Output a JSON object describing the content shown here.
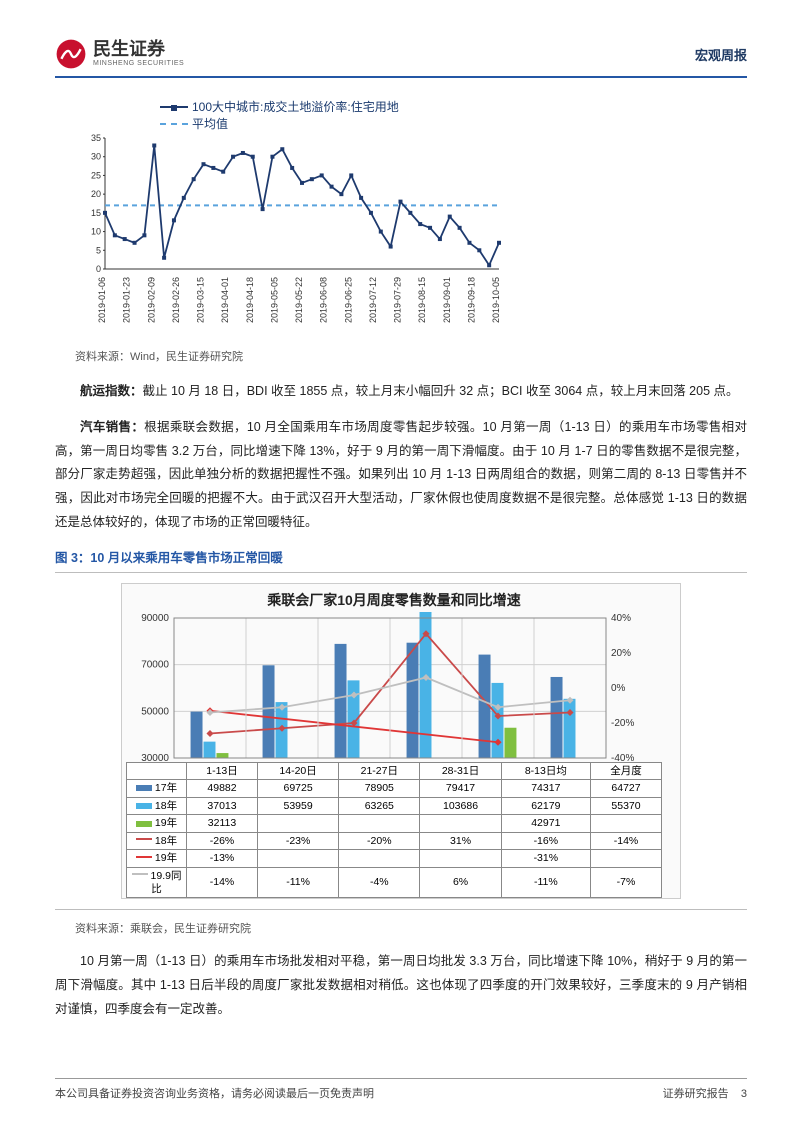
{
  "header": {
    "company_cn": "民生证券",
    "company_en": "MINSHENG SECURITIES",
    "doc_type": "宏观周报"
  },
  "chart1": {
    "type": "line",
    "legend_series": "100大中城市:成交土地溢价率:住宅用地",
    "legend_avg": "平均值",
    "series_color": "#1e3a6e",
    "avg_color": "#5aa3dd",
    "avg_value": 17,
    "y_ticks": [
      0,
      5,
      10,
      15,
      20,
      25,
      30,
      35
    ],
    "ylim": [
      0,
      35
    ],
    "x_labels": [
      "2019-01-06",
      "2019-01-23",
      "2019-02-09",
      "2019-02-26",
      "2019-03-15",
      "2019-04-01",
      "2019-04-18",
      "2019-05-05",
      "2019-05-22",
      "2019-06-08",
      "2019-06-25",
      "2019-07-12",
      "2019-07-29",
      "2019-08-15",
      "2019-09-01",
      "2019-09-18",
      "2019-10-05"
    ],
    "values": [
      15,
      9,
      8,
      7,
      9,
      33,
      3,
      13,
      19,
      24,
      28,
      27,
      26,
      30,
      31,
      30,
      16,
      30,
      32,
      27,
      23,
      24,
      25,
      22,
      20,
      25,
      19,
      15,
      10,
      6,
      18,
      15,
      12,
      11,
      8,
      14,
      11,
      7,
      5,
      1,
      7
    ],
    "background_color": "#ffffff",
    "grid_color": "#e0e0e0",
    "axis_font_size": 9
  },
  "source1": "资料来源：Wind，民生证券研究院",
  "para1_lead": "航运指数：",
  "para1": "截止 10 月 18 日，BDI 收至 1855 点，较上月末小幅回升 32 点；BCI 收至 3064 点，较上月末回落 205 点。",
  "para2_lead": "汽车销售：",
  "para2": "根据乘联会数据，10 月全国乘用车市场周度零售起步较强。10 月第一周（1-13 日）的乘用车市场零售相对高，第一周日均零售 3.2 万台，同比增速下降 13%，好于 9 月的第一周下滑幅度。由于 10 月 1-7 日的零售数据不是很完整，部分厂家走势超强，因此单独分析的数据把握性不强。如果列出 10 月 1-13 日两周组合的数据，则第二周的 8-13 日零售并不强，因此对市场完全回暖的把握不大。由于武汉召开大型活动，厂家休假也使周度数据不是很完整。总体感觉 1-13 日的数据还是总体较好的，体现了市场的正常回暖特征。",
  "fig3_title": "图 3：10 月以来乘用车零售市场正常回暖",
  "chart2": {
    "type": "bar+line",
    "title": "乘联会厂家10月周度零售数量和同比增速",
    "left_y_ticks": [
      30000,
      50000,
      70000,
      90000
    ],
    "left_ylim": [
      30000,
      90000
    ],
    "right_y_ticks": [
      -40,
      -20,
      0,
      20,
      40
    ],
    "right_ylim": [
      -40,
      40
    ],
    "categories": [
      "1-13日",
      "14-20日",
      "21-27日",
      "28-31日",
      "8-13日均",
      "全月度"
    ],
    "series": {
      "y17": {
        "label": "17年",
        "color": "#4a7db5",
        "values": [
          49882,
          69725,
          78905,
          79417,
          74317,
          64727
        ]
      },
      "y18": {
        "label": "18年",
        "color": "#49b3e6",
        "values": [
          37013,
          53959,
          63265,
          103686,
          62179,
          55370
        ]
      },
      "y19": {
        "label": "19年",
        "color": "#7fbf3f",
        "values": [
          32113,
          null,
          null,
          null,
          42971,
          null
        ]
      }
    },
    "lines": {
      "g18": {
        "label": "18年",
        "color": "#c94a4a",
        "values": [
          -26,
          -23,
          -20,
          31,
          -16,
          -14
        ]
      },
      "g19": {
        "label": "19年",
        "color": "#e03636",
        "values": [
          -13,
          null,
          null,
          null,
          -31,
          null
        ]
      },
      "g199": {
        "label": "19.9同比",
        "color": "#bfbfbf",
        "values": [
          -14,
          -11,
          -4,
          6,
          -11,
          -7
        ]
      }
    },
    "label_fontsize": 10,
    "background_color": "#fafafa",
    "grid_color": "#d0d0d0"
  },
  "source2": "资料来源：乘联会，民生证券研究院",
  "para3": "10 月第一周（1-13 日）的乘用车市场批发相对平稳，第一周日均批发 3.3 万台，同比增速下降 10%，稍好于 9 月的第一周下滑幅度。其中 1-13 日后半段的周度厂家批发数据相对稍低。这也体现了四季度的开门效果较好，三季度末的 9 月产销相对谨慎，四季度会有一定改善。",
  "footer": {
    "left": "本公司具备证券投资咨询业务资格，请务必阅读最后一页免责声明",
    "right_label": "证券研究报告",
    "page": "3"
  }
}
